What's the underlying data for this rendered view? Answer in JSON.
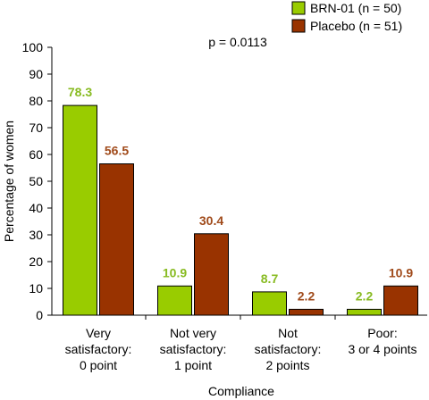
{
  "chart_data": {
    "type": "bar",
    "categories": [
      [
        "Very",
        "satisfactory:",
        "0 point"
      ],
      [
        "Not very",
        "satisfactory:",
        "1 point"
      ],
      [
        "Not",
        "satisfactory:",
        "2 points"
      ],
      [
        "Poor:",
        "3 or 4 points"
      ]
    ],
    "series": [
      {
        "name": "BRN-01 (n = 50)",
        "values": [
          78.3,
          10.9,
          8.7,
          2.2
        ],
        "color": "#99cc00",
        "label_color": "#88bb22"
      },
      {
        "name": "Placebo (n = 51)",
        "values": [
          56.5,
          30.4,
          2.2,
          10.9
        ],
        "color": "#993300",
        "label_color": "#a04a1a"
      }
    ],
    "xlabel": "Compliance",
    "ylabel": "Percentage of women",
    "ylim": [
      0,
      100
    ],
    "yticks": [
      0,
      10,
      20,
      30,
      40,
      50,
      60,
      70,
      80,
      90,
      100
    ],
    "annotation": "p = 0.0113",
    "legend_position": "top-right",
    "grid": false
  }
}
